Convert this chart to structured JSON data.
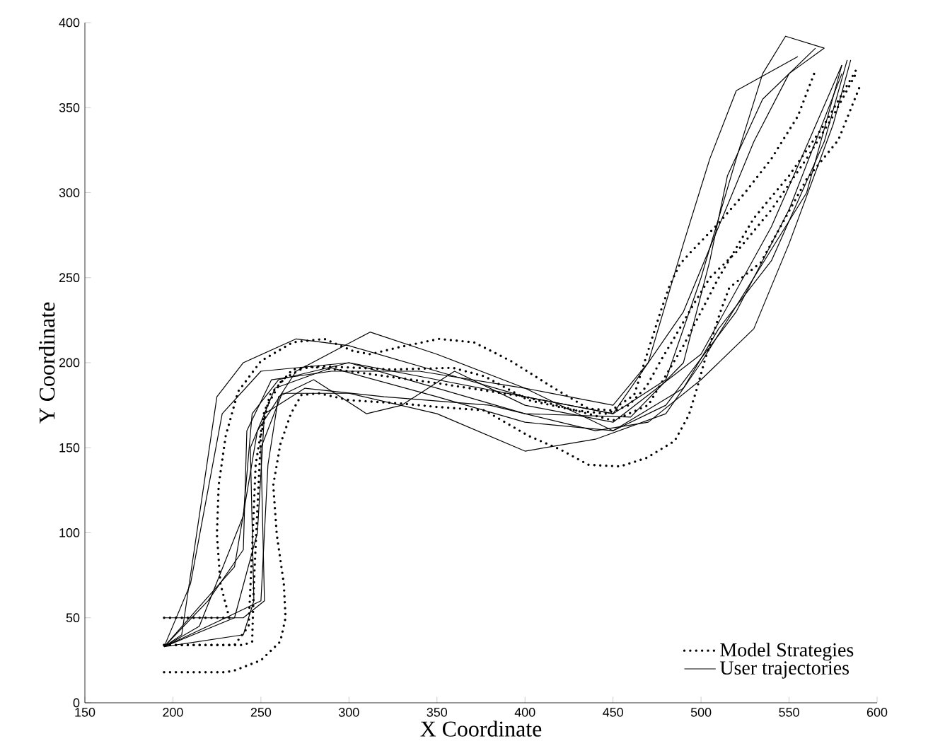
{
  "chart_data": {
    "type": "line",
    "xlabel": "X Coordinate",
    "ylabel": "Y Coordinate",
    "xlim": [
      150,
      600
    ],
    "ylim": [
      0,
      400
    ],
    "xticks": [
      150,
      200,
      250,
      300,
      350,
      400,
      450,
      500,
      550,
      600
    ],
    "yticks": [
      0,
      50,
      100,
      150,
      200,
      250,
      300,
      350,
      400
    ],
    "legend": "bottom right",
    "marker": "none",
    "series": [
      {
        "name": "Model Strategies",
        "color": "#000000",
        "line_style": "dotted",
        "x": [
          195,
          230,
          235,
          250,
          261,
          264,
          263,
          259,
          257,
          261,
          267,
          273,
          283,
          300,
          330,
          350,
          377,
          402,
          420,
          436,
          454,
          469,
          485,
          493,
          498,
          502,
          511,
          516,
          534,
          560,
          578,
          590
        ],
        "values": [
          18,
          18,
          19,
          25,
          36,
          50,
          70,
          99,
          128,
          152,
          170,
          181,
          182,
          178,
          176,
          174,
          172,
          157,
          149,
          140,
          139,
          144,
          154,
          169,
          186,
          201,
          230,
          244,
          259,
          308,
          331,
          362
        ]
      },
      {
        "color": "#000000",
        "line_style": "dotted",
        "x": [
          195,
          240,
          245,
          246,
          248,
          250,
          255,
          268,
          284,
          325,
          359,
          377,
          402,
          428,
          446,
          459,
          469,
          477,
          485,
          495,
          505,
          520,
          540,
          560,
          575,
          588
        ],
        "values": [
          34,
          34,
          36,
          70,
          114,
          157,
          181,
          196,
          198,
          196,
          197,
          192,
          178,
          172,
          170,
          175,
          186,
          201,
          215,
          233,
          250,
          265,
          290,
          320,
          345,
          370
        ]
      },
      {
        "color": "#000000",
        "line_style": "dotted",
        "x": [
          195,
          232,
          227,
          225,
          226,
          230,
          237,
          250,
          268,
          286,
          302,
          312,
          328,
          351,
          371,
          392,
          415,
          436,
          449,
          462,
          469,
          477,
          482,
          488,
          495,
          510,
          525,
          540,
          555,
          565
        ],
        "values": [
          50,
          50,
          70,
          99,
          128,
          157,
          183,
          201,
          212,
          214,
          207,
          205,
          209,
          214,
          212,
          201,
          186,
          173,
          172,
          181,
          204,
          230,
          245,
          258,
          266,
          282,
          300,
          320,
          345,
          372
        ]
      },
      {
        "color": "#000000",
        "line_style": "dotted",
        "x": [
          195,
          235,
          243,
          245,
          247,
          252,
          262,
          276,
          300,
          350,
          400,
          450,
          470,
          490,
          510,
          530,
          550,
          570,
          588
        ],
        "values": [
          34,
          34,
          45,
          90,
          140,
          172,
          190,
          198,
          195,
          188,
          180,
          166,
          175,
          210,
          250,
          285,
          310,
          340,
          372
        ]
      },
      {
        "name": "User trajectories",
        "color": "#000000",
        "line_style": "solid",
        "x": [
          195,
          205,
          225,
          240,
          270,
          300,
          350,
          400,
          450,
          480,
          500,
          520,
          535,
          548,
          570
        ],
        "values": [
          33,
          40,
          180,
          200,
          214,
          210,
          195,
          180,
          170,
          190,
          250,
          320,
          370,
          392,
          385
        ]
      },
      {
        "color": "#000000",
        "line_style": "solid",
        "x": [
          195,
          215,
          240,
          245,
          260,
          300,
          350,
          400,
          450,
          490,
          510,
          530,
          550,
          570
        ],
        "values": [
          33,
          45,
          110,
          170,
          190,
          200,
          190,
          180,
          170,
          230,
          280,
          330,
          370,
          385
        ]
      },
      {
        "color": "#000000",
        "line_style": "solid",
        "x": [
          195,
          235,
          248,
          270,
          312,
          350,
          400,
          450,
          480,
          520,
          550,
          580
        ],
        "values": [
          33,
          80,
          160,
          195,
          218,
          205,
          185,
          160,
          175,
          230,
          290,
          370
        ]
      },
      {
        "color": "#000000",
        "line_style": "solid",
        "x": [
          195,
          230,
          250,
          254,
          260,
          280,
          310,
          330,
          360,
          400,
          450,
          500,
          540,
          580
        ],
        "values": [
          33,
          50,
          60,
          140,
          180,
          190,
          170,
          175,
          195,
          175,
          165,
          205,
          280,
          375
        ]
      },
      {
        "color": "#000000",
        "line_style": "solid",
        "x": [
          195,
          240,
          252,
          250,
          262,
          300,
          350,
          400,
          440,
          480,
          500,
          530,
          560,
          580
        ],
        "values": [
          50,
          50,
          60,
          150,
          182,
          182,
          170,
          148,
          155,
          170,
          200,
          250,
          300,
          375
        ]
      },
      {
        "color": "#000000",
        "line_style": "solid",
        "x": [
          195,
          240,
          246,
          244,
          258,
          290,
          350,
          400,
          450,
          490,
          510,
          540,
          570,
          583
        ],
        "values": [
          33,
          40,
          60,
          150,
          185,
          197,
          180,
          165,
          160,
          185,
          220,
          260,
          330,
          378
        ]
      },
      {
        "color": "#000000",
        "line_style": "solid",
        "x": [
          195,
          220,
          240,
          242,
          256,
          290,
          340,
          400,
          450,
          470,
          490,
          505,
          520,
          555
        ],
        "values": [
          33,
          60,
          90,
          160,
          190,
          195,
          195,
          185,
          175,
          200,
          270,
          320,
          360,
          380
        ]
      },
      {
        "color": "#000000",
        "line_style": "solid",
        "x": [
          195,
          210,
          228,
          250,
          300,
          350,
          400,
          460,
          490,
          505,
          515,
          535,
          565
        ],
        "values": [
          33,
          70,
          170,
          195,
          200,
          185,
          170,
          168,
          200,
          260,
          310,
          355,
          385
        ]
      },
      {
        "color": "#000000",
        "line_style": "solid",
        "x": [
          195,
          235,
          248,
          252,
          275,
          320,
          380,
          440,
          470,
          500,
          530,
          550,
          575,
          585
        ],
        "values": [
          33,
          50,
          100,
          170,
          185,
          180,
          175,
          160,
          165,
          190,
          220,
          270,
          340,
          378
        ]
      }
    ]
  }
}
